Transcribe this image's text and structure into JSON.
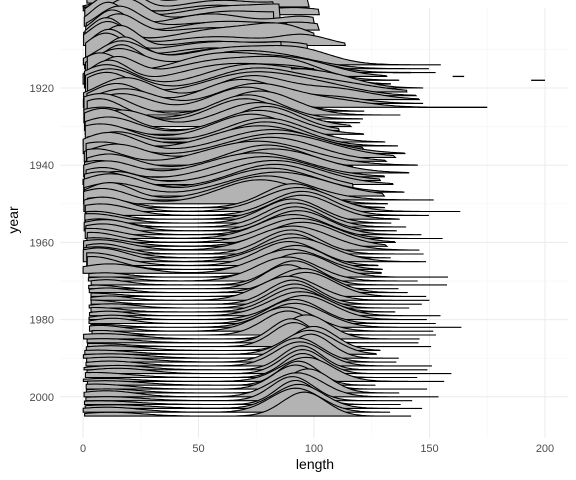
{
  "chart_data": {
    "type": "ridgeline",
    "xlabel": "length",
    "ylabel": "year",
    "xlim": [
      0,
      200
    ],
    "x_ticks": [
      0,
      50,
      100,
      150,
      200
    ],
    "ylim": [
      1893,
      2005
    ],
    "y_ticks": [
      1920,
      1940,
      1960,
      1980,
      2000
    ],
    "grid": true,
    "fill_color": "#b3b3b3",
    "line_color": "#000000",
    "ridge_groups": [
      {
        "from": 1893,
        "to": 1913,
        "components": [
          {
            "mean": 14,
            "sd": 8,
            "weight": 0.55
          },
          {
            "mean": 60,
            "sd": 18,
            "weight": 0.25
          },
          {
            "mean": 92,
            "sd": 12,
            "weight": 0.2
          }
        ],
        "x_extent": [
          0,
          105
        ]
      },
      {
        "from": 1914,
        "to": 1919,
        "components": [
          {
            "mean": 12,
            "sd": 10,
            "weight": 0.45
          },
          {
            "mean": 62,
            "sd": 20,
            "weight": 0.35
          },
          {
            "mean": 95,
            "sd": 15,
            "weight": 0.2
          }
        ],
        "x_extent": [
          0,
          155
        ]
      },
      {
        "from": 1920,
        "to": 1925,
        "components": [
          {
            "mean": 14,
            "sd": 12,
            "weight": 0.4
          },
          {
            "mean": 70,
            "sd": 18,
            "weight": 0.45
          },
          {
            "mean": 110,
            "sd": 15,
            "weight": 0.15
          }
        ],
        "x_extent": [
          0,
          160
        ]
      },
      {
        "from": 1926,
        "to": 1933,
        "components": [
          {
            "mean": 12,
            "sd": 12,
            "weight": 0.4
          },
          {
            "mean": 75,
            "sd": 15,
            "weight": 0.6
          }
        ],
        "x_extent": [
          0,
          125
        ]
      },
      {
        "from": 1934,
        "to": 1950,
        "components": [
          {
            "mean": 10,
            "sd": 12,
            "weight": 0.4
          },
          {
            "mean": 80,
            "sd": 20,
            "weight": 0.6
          }
        ],
        "x_extent": [
          0,
          140
        ]
      },
      {
        "from": 1951,
        "to": 1968,
        "components": [
          {
            "mean": 8,
            "sd": 12,
            "weight": 0.3
          },
          {
            "mean": 92,
            "sd": 14,
            "weight": 0.7
          }
        ],
        "x_extent": [
          0,
          150
        ]
      },
      {
        "from": 1969,
        "to": 1984,
        "components": [
          {
            "mean": 8,
            "sd": 10,
            "weight": 0.15
          },
          {
            "mean": 92,
            "sd": 12,
            "weight": 0.85
          }
        ],
        "x_extent": [
          2,
          160
        ]
      },
      {
        "from": 1985,
        "to": 2005,
        "components": [
          {
            "mean": 10,
            "sd": 14,
            "weight": 0.15
          },
          {
            "mean": 95,
            "sd": 10,
            "weight": 0.85
          }
        ],
        "x_extent": [
          0,
          150
        ]
      }
    ],
    "isolated_segments": [
      {
        "year": 1915,
        "x": [
          90,
          100
        ]
      },
      {
        "year": 1916,
        "x": [
          134,
          142
        ]
      },
      {
        "year": 1917,
        "x": [
          160,
          165
        ]
      },
      {
        "year": 1918,
        "x": [
          194,
          200
        ]
      },
      {
        "year": 1925,
        "x": [
          145,
          175
        ]
      }
    ]
  }
}
